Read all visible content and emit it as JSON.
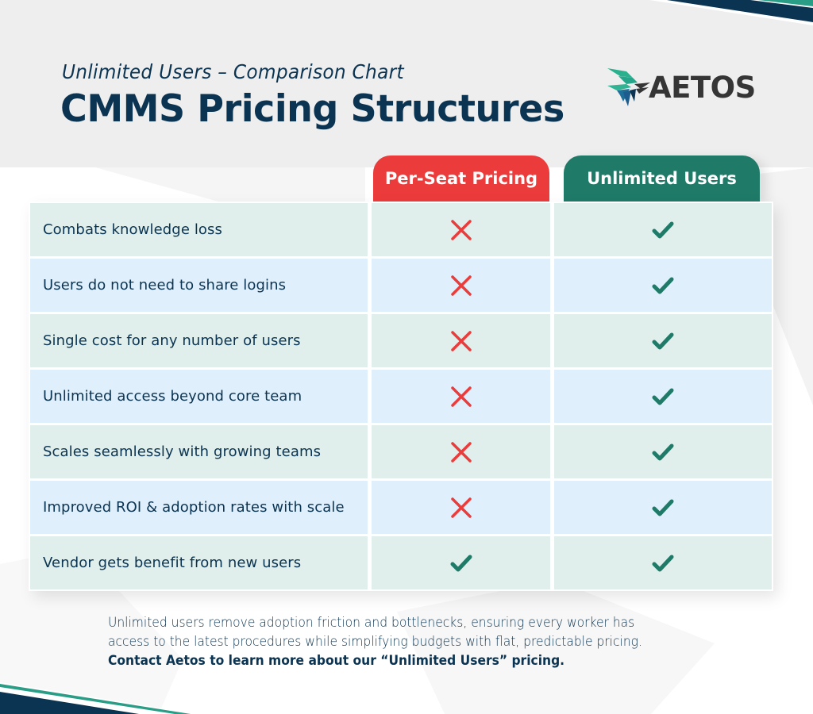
{
  "header": {
    "subtitle": "Unlimited Users – Comparison Chart",
    "title": "CMMS Pricing Structures",
    "logo_text": "AETOS",
    "logo_icon": "eagle-feather-icon"
  },
  "columns": {
    "per_seat": {
      "label": "Per-Seat Pricing",
      "color": "#ec3b3b"
    },
    "unlimited": {
      "label": "Unlimited Users",
      "color": "#1f7a68"
    }
  },
  "icons": {
    "yes": "check-icon",
    "no": "cross-icon",
    "yes_color": "#1f7a68",
    "no_color": "#ec3b3b"
  },
  "rows": [
    {
      "label": "Combats knowledge loss",
      "per_seat": "no",
      "unlimited": "yes"
    },
    {
      "label": "Users do not need to share logins",
      "per_seat": "no",
      "unlimited": "yes"
    },
    {
      "label": "Single cost for any number of users",
      "per_seat": "no",
      "unlimited": "yes"
    },
    {
      "label": "Unlimited access beyond core team",
      "per_seat": "no",
      "unlimited": "yes"
    },
    {
      "label": "Scales seamlessly with growing teams",
      "per_seat": "no",
      "unlimited": "yes"
    },
    {
      "label": "Improved ROI & adoption rates with scale",
      "per_seat": "no",
      "unlimited": "yes"
    },
    {
      "label": "Vendor gets benefit from new users",
      "per_seat": "yes",
      "unlimited": "yes"
    }
  ],
  "footer": {
    "line1": "Unlimited users remove adoption friction and bottlenecks, ensuring every worker has",
    "line2": "access to the latest procedures while simplifying budgets with flat, predictable pricing.",
    "cta": "Contact Aetos to learn more about our “Unlimited Users” pricing."
  },
  "colors": {
    "navy": "#0b3452",
    "teal": "#2a9d86",
    "header_bg": "#eeeeee",
    "row_green": "#e0efeb",
    "row_blue": "#dfeffc"
  }
}
